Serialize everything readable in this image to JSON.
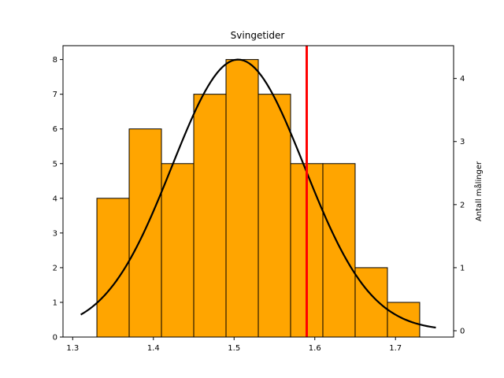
{
  "chart_data": {
    "type": "bar",
    "title": "Svingetider",
    "xlabel": "",
    "ylabel": "",
    "y2label": "Antall målinger",
    "xlim": [
      1.288,
      1.772
    ],
    "ylim": [
      0,
      8.4
    ],
    "y2lim": [
      -0.1,
      4.52
    ],
    "x_ticks": [
      1.3,
      1.4,
      1.5,
      1.6,
      1.7
    ],
    "x_tick_labels": [
      "1.3",
      "1.4",
      "1.5",
      "1.6",
      "1.7"
    ],
    "y_ticks": [
      0,
      1,
      2,
      3,
      4,
      5,
      6,
      7,
      8
    ],
    "y_tick_labels": [
      "0",
      "1",
      "2",
      "3",
      "4",
      "5",
      "6",
      "7",
      "8"
    ],
    "y2_ticks": [
      0,
      1,
      2,
      3,
      4
    ],
    "y2_tick_labels": [
      "0",
      "1",
      "2",
      "3",
      "4"
    ],
    "bin_width": 0.04,
    "bins": [
      {
        "left": 1.33,
        "count": 4
      },
      {
        "left": 1.37,
        "count": 6
      },
      {
        "left": 1.41,
        "count": 5
      },
      {
        "left": 1.45,
        "count": 7
      },
      {
        "left": 1.49,
        "count": 8
      },
      {
        "left": 1.53,
        "count": 7
      },
      {
        "left": 1.57,
        "count": 5
      },
      {
        "left": 1.61,
        "count": 5
      },
      {
        "left": 1.65,
        "count": 2
      },
      {
        "left": 1.69,
        "count": 1
      }
    ],
    "curve": {
      "mean": 1.505,
      "std": 0.082,
      "peak": 4.3,
      "x_range": [
        1.31,
        1.75
      ],
      "axis": "y2"
    },
    "vline": {
      "x": 1.59
    },
    "colors": {
      "bar_fill": "#ffa500",
      "bar_edge": "#000000",
      "curve": "#000000",
      "vline": "#ff0000"
    },
    "grid": false
  }
}
